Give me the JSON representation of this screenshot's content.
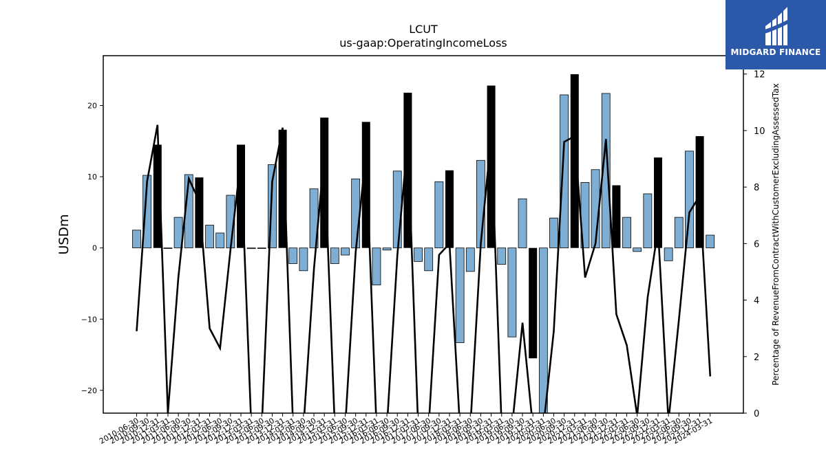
{
  "chart_data": {
    "type": "bar+line",
    "title": "LCUT",
    "subtitle": "us-gaap:OperatingIncomeLoss",
    "ylabel": "USDm",
    "y2label": "Percentage of RevenueFromContractWithCustomerExcludingAssessedTax",
    "ylim": [
      -23.2,
      27.0
    ],
    "y2lim": [
      0,
      12.65
    ],
    "yticks": [
      -20,
      -10,
      0,
      10,
      20
    ],
    "y2ticks": [
      0,
      2,
      4,
      6,
      8,
      10,
      12
    ],
    "colors": {
      "quarter_bar": "#7eaed3",
      "annual_bar": "#000000",
      "line": "#000000"
    },
    "xtick_labels": [
      "2010-06-30",
      "2010-09-30",
      "2010-12-31",
      "2011-03-31",
      "2011-06-30",
      "2011-09-30",
      "2011-12-31",
      "2012-03-31",
      "2012-06-30",
      "2012-09-30",
      "2012-12-31",
      "2013-03-31",
      "2013-06-30",
      "2013-09-30",
      "2013-12-31",
      "2014-03-31",
      "2014-06-30",
      "2014-09-30",
      "2014-12-31",
      "2015-03-31",
      "2015-06-30",
      "2015-09-30",
      "2015-12-31",
      "2016-03-31",
      "2016-06-30",
      "2016-09-30",
      "2016-12-31",
      "2017-03-31",
      "2017-06-30",
      "2017-09-30",
      "2017-12-31",
      "2018-03-31",
      "2018-06-30",
      "2018-09-30",
      "2018-12-31",
      "2019-03-31",
      "2019-06-30",
      "2019-09-30",
      "2019-12-31",
      "2020-03-31",
      "2020-06-30",
      "2020-09-30",
      "2020-12-31",
      "2021-03-31",
      "2021-06-30",
      "2021-09-30",
      "2021-12-31",
      "2022-03-31",
      "2022-06-30",
      "2022-09-30",
      "2022-12-31",
      "2023-03-31",
      "2023-06-30",
      "2023-09-30",
      "2023-12-31",
      "2024-03-31"
    ],
    "series": [
      {
        "kind": "bar",
        "values": [
          2.5,
          10.2,
          14.5,
          0.0,
          4.3,
          10.3,
          9.9,
          3.2,
          2.1,
          7.4,
          14.5,
          -0.1,
          0.0,
          11.7,
          16.6,
          -2.2,
          -3.2,
          8.3,
          18.3,
          -2.2,
          -1.0,
          9.7,
          17.7,
          -5.2,
          -0.3,
          10.8,
          21.8,
          -1.9,
          -3.2,
          9.3,
          10.9,
          -13.3,
          -3.3,
          12.3,
          22.8,
          -2.3,
          -12.5,
          6.9,
          -15.5,
          -25.0,
          4.2,
          21.5,
          24.4,
          9.2,
          11.0,
          21.7,
          8.8,
          4.3,
          -0.5,
          7.6,
          12.7,
          -1.8,
          4.3,
          13.6,
          15.7,
          1.8
        ],
        "annual": [
          false,
          false,
          true,
          false,
          false,
          false,
          true,
          false,
          false,
          false,
          true,
          false,
          false,
          false,
          true,
          false,
          false,
          false,
          true,
          false,
          false,
          false,
          true,
          false,
          false,
          false,
          true,
          false,
          false,
          false,
          true,
          false,
          false,
          false,
          true,
          false,
          false,
          false,
          true,
          false,
          false,
          false,
          true,
          false,
          false,
          false,
          true,
          false,
          false,
          false,
          true,
          false,
          false,
          false,
          true,
          false
        ]
      },
      {
        "kind": "line",
        "axis": "right",
        "values": [
          2.9,
          8.2,
          10.2,
          0.0,
          4.8,
          8.3,
          7.5,
          3.0,
          2.3,
          5.8,
          9.0,
          -0.5,
          -0.5,
          8.2,
          10.1,
          -0.5,
          -0.5,
          5.1,
          9.2,
          -0.5,
          -0.5,
          5.7,
          9.2,
          -0.5,
          -0.5,
          5.6,
          9.7,
          -0.5,
          -0.5,
          5.6,
          6.0,
          -0.5,
          -0.5,
          6.0,
          9.8,
          -0.5,
          -0.5,
          3.2,
          -0.5,
          -0.5,
          2.9,
          9.6,
          9.8,
          4.8,
          6.0,
          9.7,
          3.5,
          2.4,
          -0.1,
          4.1,
          6.5,
          -0.3,
          3.3,
          7.1,
          7.7,
          1.3
        ]
      }
    ]
  },
  "logo": {
    "text": "MIDGARD FINANCE"
  }
}
